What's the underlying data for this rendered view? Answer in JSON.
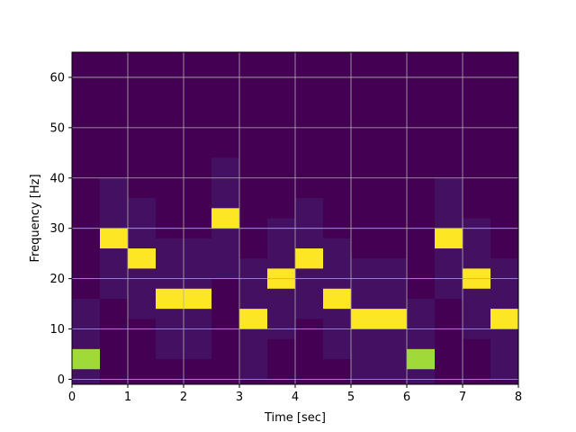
{
  "chart_data": {
    "type": "heatmap",
    "title": "",
    "xlabel": "Time [sec]",
    "ylabel": "Frequency [Hz]",
    "xlim": [
      0,
      8
    ],
    "ylim": [
      -1,
      65
    ],
    "xticks": [
      "0",
      "1",
      "2",
      "3",
      "4",
      "5",
      "6",
      "7",
      "8"
    ],
    "yticks": [
      "0",
      "10",
      "20",
      "30",
      "40",
      "50",
      "60"
    ],
    "grid": true,
    "colormap": "viridis",
    "background_color": "#440154",
    "frequency_bin_hz": 4,
    "time_bin_sec": 0.5,
    "segments": [
      {
        "t_start": 0.0,
        "t_end": 0.5,
        "freq": 4,
        "level": 0.8
      },
      {
        "t_start": 0.5,
        "t_end": 1.0,
        "freq": 28,
        "level": 1.0
      },
      {
        "t_start": 1.0,
        "t_end": 1.5,
        "freq": 24,
        "level": 1.0
      },
      {
        "t_start": 1.5,
        "t_end": 2.0,
        "freq": 16,
        "level": 1.0
      },
      {
        "t_start": 2.0,
        "t_end": 2.5,
        "freq": 16,
        "level": 1.0
      },
      {
        "t_start": 2.5,
        "t_end": 3.0,
        "freq": 32,
        "level": 1.0
      },
      {
        "t_start": 3.0,
        "t_end": 3.5,
        "freq": 12,
        "level": 1.0
      },
      {
        "t_start": 3.5,
        "t_end": 4.0,
        "freq": 20,
        "level": 1.0
      },
      {
        "t_start": 4.0,
        "t_end": 4.5,
        "freq": 24,
        "level": 1.0
      },
      {
        "t_start": 4.5,
        "t_end": 5.0,
        "freq": 16,
        "level": 1.0
      },
      {
        "t_start": 5.0,
        "t_end": 5.5,
        "freq": 12,
        "level": 1.0
      },
      {
        "t_start": 5.5,
        "t_end": 6.0,
        "freq": 12,
        "level": 1.0
      },
      {
        "t_start": 6.0,
        "t_end": 6.5,
        "freq": 4,
        "level": 0.8
      },
      {
        "t_start": 6.5,
        "t_end": 7.0,
        "freq": 28,
        "level": 1.0
      },
      {
        "t_start": 7.0,
        "t_end": 7.5,
        "freq": 20,
        "level": 1.0
      },
      {
        "t_start": 7.5,
        "t_end": 8.0,
        "freq": 12,
        "level": 1.0
      }
    ],
    "colors": {
      "peak": "#fde725",
      "mid": "#a0da39",
      "grid": "#b0b0b0"
    }
  }
}
